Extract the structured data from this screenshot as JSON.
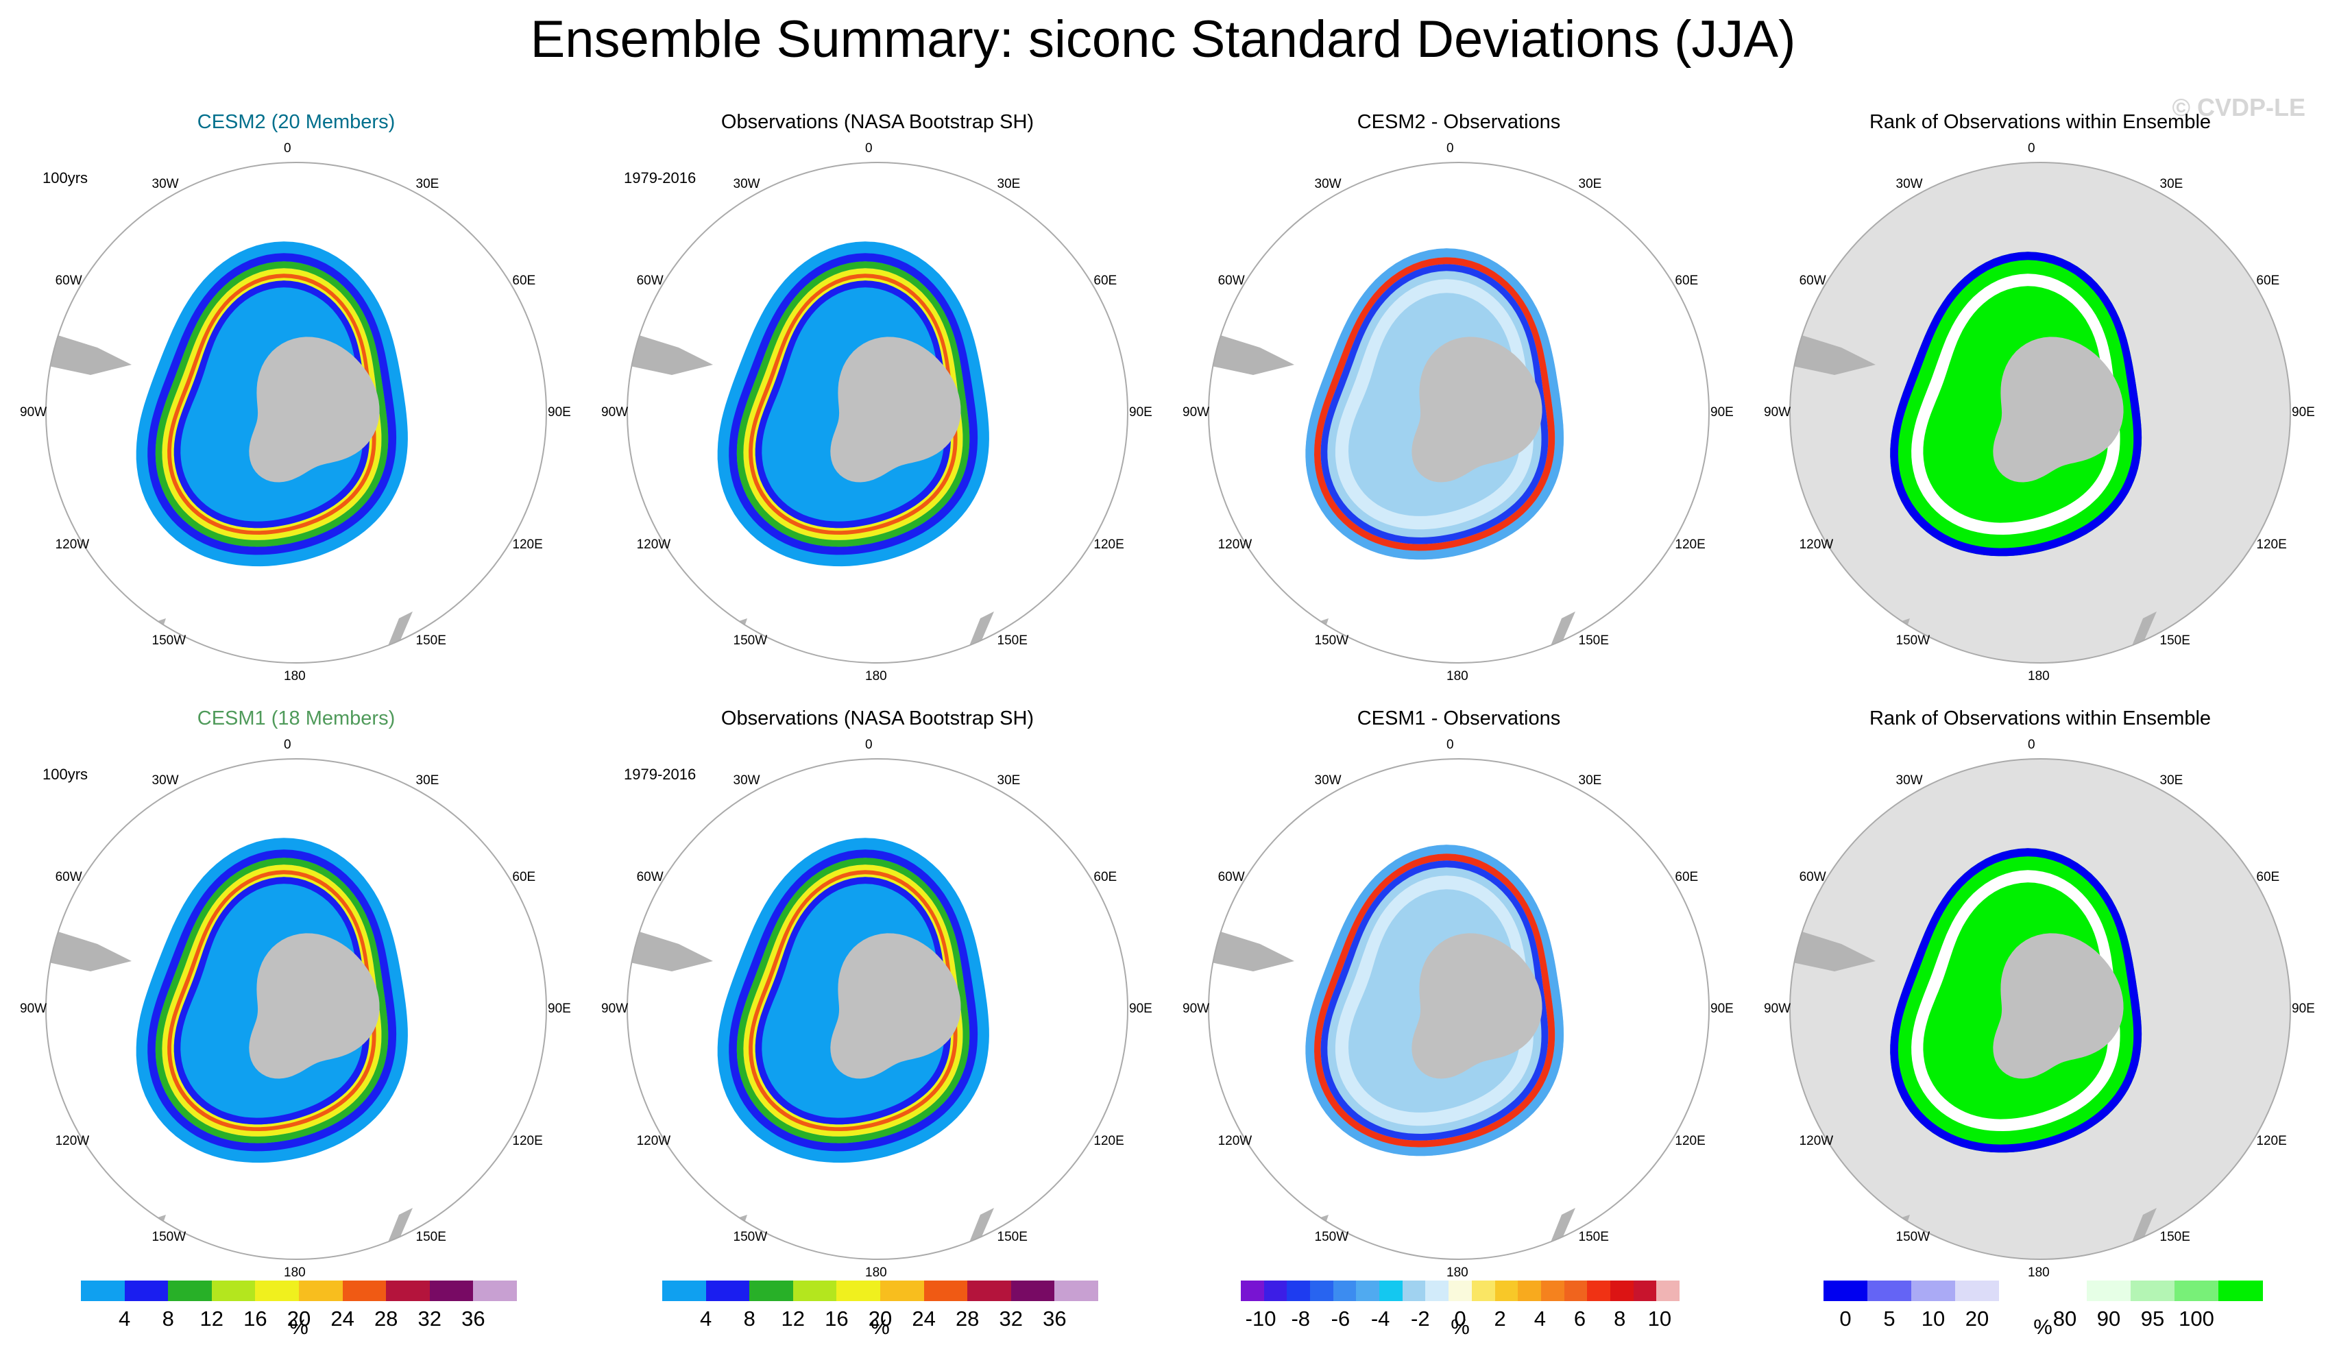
{
  "title": "Ensemble Summary: siconc Standard Deviations (JJA)",
  "watermark": "© CVDP-LE",
  "longitude_labels": [
    "0",
    "30E",
    "60E",
    "90E",
    "120E",
    "150E",
    "180",
    "150W",
    "120W",
    "90W",
    "60W",
    "30W"
  ],
  "panels": [
    {
      "title": "CESM2 (20 Members)",
      "title_color": "#006f8c",
      "left_label": "100yrs",
      "type": "std"
    },
    {
      "title": "Observations (NASA Bootstrap SH)",
      "title_color": "#000000",
      "left_label": "1979-2016",
      "type": "std"
    },
    {
      "title": "CESM2 - Observations",
      "title_color": "#000000",
      "left_label": "",
      "type": "diff"
    },
    {
      "title": "Rank of Observations within Ensemble",
      "title_color": "#000000",
      "left_label": "",
      "type": "rank"
    },
    {
      "title": "CESM1 (18 Members)",
      "title_color": "#4f9a5a",
      "left_label": "100yrs",
      "type": "std"
    },
    {
      "title": "Observations (NASA Bootstrap SH)",
      "title_color": "#000000",
      "left_label": "1979-2016",
      "type": "std"
    },
    {
      "title": "CESM1 - Observations",
      "title_color": "#000000",
      "left_label": "",
      "type": "diff"
    },
    {
      "title": "Rank of Observations within Ensemble",
      "title_color": "#000000",
      "left_label": "",
      "type": "rank"
    }
  ],
  "colorbars": [
    {
      "name": "std-colorbar-1",
      "unit": "%",
      "colors": [
        "#0fa0f0",
        "#1a1ef0",
        "#28b028",
        "#b4e61e",
        "#f0f01e",
        "#f8be1e",
        "#f05a14",
        "#b4143c",
        "#780a64",
        "#c8a0d2"
      ],
      "ticks": [
        "4",
        "8",
        "12",
        "16",
        "20",
        "24",
        "28",
        "32",
        "36"
      ]
    },
    {
      "name": "std-colorbar-2",
      "unit": "%",
      "colors": [
        "#0fa0f0",
        "#1a1ef0",
        "#28b028",
        "#b4e61e",
        "#f0f01e",
        "#f8be1e",
        "#f05a14",
        "#b4143c",
        "#780a64",
        "#c8a0d2"
      ],
      "ticks": [
        "4",
        "8",
        "12",
        "16",
        "20",
        "24",
        "28",
        "32",
        "36"
      ]
    },
    {
      "name": "diff-colorbar",
      "unit": "%",
      "colors": [
        "#7814d2",
        "#3c1ee6",
        "#1e3cf0",
        "#2864f0",
        "#3c8cf0",
        "#50aaf0",
        "#14c8f0",
        "#a0d2f0",
        "#d2ebfa",
        "#fafadc",
        "#fae664",
        "#f8c828",
        "#f8aa1e",
        "#f5821e",
        "#f0641e",
        "#f03214",
        "#dc1414",
        "#c8142d",
        "#f0b4b4"
      ],
      "ticks": [
        "-10",
        "-8",
        "-6",
        "-4",
        "-2",
        "0",
        "2",
        "4",
        "6",
        "8",
        "10"
      ]
    },
    {
      "name": "rank-colorbar",
      "unit": "%",
      "colors": [
        "#0000f0",
        "#6464f5",
        "#aaaaf5",
        "#dcdcf8",
        "#ffffff",
        "#ffffff",
        "#e6ffe6",
        "#b4f5b4",
        "#78f078",
        "#00f000"
      ],
      "ticks": [
        "0",
        "5",
        "10",
        "20",
        "80",
        "90",
        "95",
        "100"
      ]
    }
  ]
}
